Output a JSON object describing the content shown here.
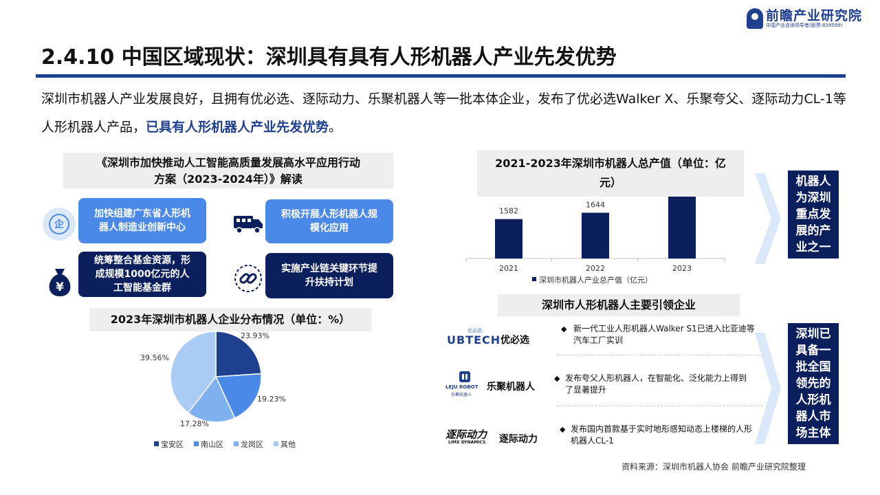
{
  "logo": {
    "name": "前瞻产业研究院",
    "sub": "中国产业咨询领导者(股票:839599)"
  },
  "title": "2.4.10 中国区域现状：深圳具有具有人形机器人产业先发优势",
  "intro": {
    "text": "深圳市机器人产业发展良好，且拥有优必选、逐际动力、乐聚机器人等一批本体企业，发布了优必选Walker X、乐聚夸父、逐际动力CL-1等人形机器人产品，",
    "highlight": "已具有人形机器人产业先发优势",
    "end": "。"
  },
  "plan": {
    "title_line1": "《深圳市加快推动人工智能高质量发展高水平应用行动",
    "title_line2": "方案（2023-2024年）》解读",
    "items": [
      {
        "text": "加快组建广东省人形机器人制造业创新中心",
        "icon": "enterprise-icon",
        "glyph": "企"
      },
      {
        "text": "积极开展人形机器人规模化应用",
        "icon": "truck-icon"
      },
      {
        "text": "统筹整合基金资源，形成规模1000亿元的人工智能基金群",
        "icon": "money-bag-icon",
        "glyph": "¥"
      },
      {
        "text": "实施产业链关键环节提升扶持计划",
        "icon": "chain-icon"
      }
    ]
  },
  "colors": {
    "navy": "#0b1f5c",
    "blue": "#4a89e8",
    "brand": "#1f3f8f",
    "pie": [
      "#1f3f8f",
      "#4a89e8",
      "#7fb0ef",
      "#a9cbf4"
    ]
  },
  "chart_data": [
    {
      "type": "pie",
      "title": "2023年深圳市机器人企业分布情况（单位：%）",
      "labels": [
        "宝安区",
        "南山区",
        "龙岗区",
        "其他"
      ],
      "values": [
        23.93,
        19.23,
        17.28,
        39.56
      ],
      "value_labels": [
        "23.93%",
        "19.23%",
        "17.28%",
        "39.56%"
      ],
      "legend": "bottom"
    },
    {
      "type": "bar",
      "title_line1": "2021-2023年深圳市机器人总产值（单位：亿",
      "title_line2": "元）",
      "categories": [
        "2021",
        "2022",
        "2023"
      ],
      "series": [
        {
          "name": "深圳市机器人产业总产值（亿元）",
          "values": [
            1582,
            1644,
            1800
          ],
          "labels": [
            "1582",
            "1644",
            ""
          ]
        }
      ],
      "ylim": [
        1200,
        1800
      ],
      "grid": false,
      "legend": "bottom"
    }
  ],
  "leaders": {
    "title": "深圳市人形机器人主要引领企业",
    "companies": [
      {
        "name": "优必选",
        "logo_text": "UBTECH",
        "logo_top": "优必选",
        "logo_icon": "ubtech-logo-icon",
        "desc": "新一代工业人形机器人Walker S1已进入比亚迪等汽车工厂实训"
      },
      {
        "name": "乐聚机器人",
        "logo_text": "LEJU ROBOT",
        "logo_sub": "乐聚机器人",
        "logo_icon": "leju-logo-icon",
        "desc": "发布夸父人形机器人，在智能化、泛化能力上得到了显著提升"
      },
      {
        "name": "逐际动力",
        "logo_text": "逐际动力",
        "logo_sub": "LIMX DYNAMICS",
        "logo_icon": "limx-logo-icon",
        "desc": "发布国内首款基于实时地形感知动态上楼梯的人形机器人CL-1"
      }
    ]
  },
  "side": {
    "top": "机器人为深圳重点发展的产业之一",
    "bottom": "深圳已具备一批全国领先的人形机器人市场主体"
  },
  "source": "资料来源：深圳市机器人协会 前瞻产业研究院整理"
}
